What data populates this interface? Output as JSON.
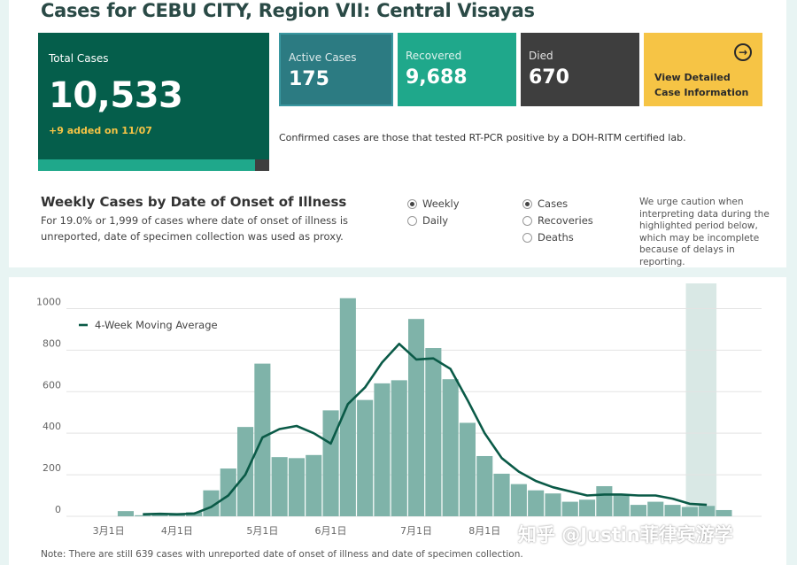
{
  "title": "Cases for CEBU CITY, Region VII: Central Visayas",
  "total": {
    "label": "Total Cases",
    "value": "10,533",
    "added": "+9 added on 11/07"
  },
  "cards": {
    "active": {
      "label": "Active Cases",
      "value": "175"
    },
    "recovered": {
      "label": "Recovered",
      "value": "9,688"
    },
    "died": {
      "label": "Died",
      "value": "670"
    },
    "view": {
      "line1": "View Detailed",
      "line2": "Case Information"
    }
  },
  "note_confirmed": "Confirmed cases are those that tested RT-PCR positive by a DOH-RITM certified lab.",
  "weekly": {
    "title": "Weekly Cases by Date of Onset of Illness",
    "subtitle": "For 19.0% or 1,999 of cases where date of onset of illness is unreported, date of specimen collection was used as proxy."
  },
  "period_options": [
    {
      "label": "Weekly",
      "selected": true
    },
    {
      "label": "Daily",
      "selected": false
    }
  ],
  "metric_options": [
    {
      "label": "Cases",
      "selected": true
    },
    {
      "label": "Recoveries",
      "selected": false
    },
    {
      "label": "Deaths",
      "selected": false
    }
  ],
  "caution": "We urge caution when interpreting data during the highlighted period below, which may be incomplete because of delays in reporting.",
  "footnote": "Note: There are still 639 cases with unreported date of onset of illness and date of specimen collection.",
  "watermark": "知乎 @Justin菲律宾游学",
  "colors": {
    "bar": "#7fb3a9",
    "line": "#0a5a47",
    "total_bg": "#055e4b",
    "active_bg": "#2c7b82",
    "recovered_bg": "#1fa88b",
    "died_bg": "#3e3e3e",
    "view_bg": "#f6c445",
    "highlight": "#d9e8e5"
  },
  "chart_data": {
    "type": "bar",
    "legend": [
      "4-Week Moving Average"
    ],
    "xtick_labels": [
      "3月1日",
      "4月1日",
      "5月1日",
      "6月1日",
      "7月1日",
      "8月1日"
    ],
    "yticks": [
      0,
      200,
      400,
      600,
      800,
      1000
    ],
    "ylim": [
      0,
      1100
    ],
    "series": [
      {
        "name": "Cases",
        "type": "bar",
        "values": [
          0,
          25,
          5,
          10,
          10,
          20,
          125,
          230,
          430,
          735,
          285,
          280,
          295,
          510,
          1050,
          560,
          640,
          655,
          950,
          810,
          660,
          450,
          290,
          205,
          155,
          125,
          110,
          70,
          80,
          145,
          100,
          55,
          70,
          55,
          45,
          50,
          30
        ]
      },
      {
        "name": "4-Week Moving Average",
        "type": "line",
        "values": [
          null,
          null,
          10,
          12,
          10,
          13,
          45,
          100,
          200,
          380,
          420,
          435,
          400,
          350,
          540,
          620,
          740,
          830,
          755,
          760,
          710,
          560,
          400,
          280,
          215,
          170,
          140,
          120,
          100,
          105,
          105,
          100,
          100,
          85,
          60,
          55,
          null
        ]
      }
    ],
    "highlight_range": [
      35,
      36
    ]
  }
}
